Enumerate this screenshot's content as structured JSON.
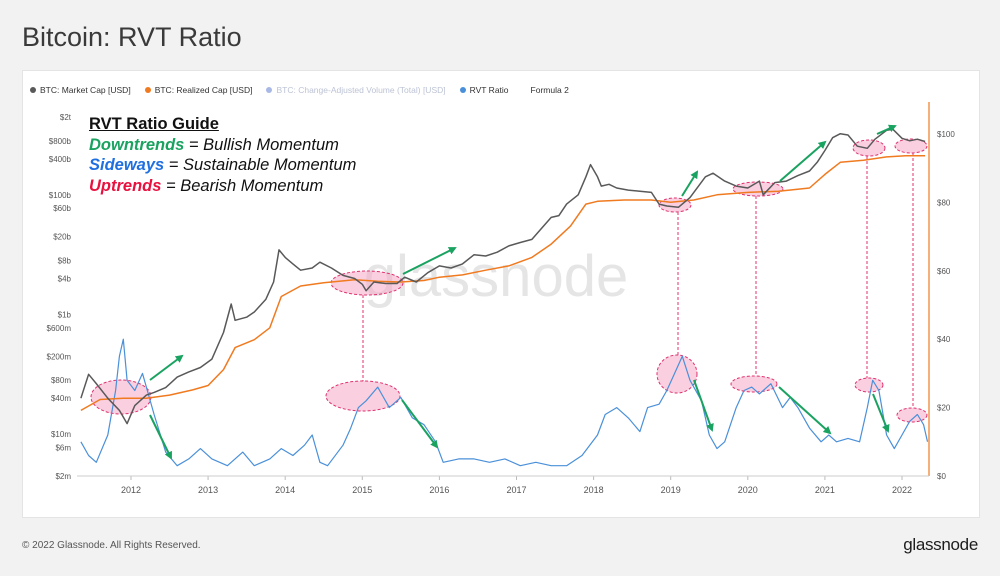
{
  "page": {
    "title": "Bitcoin: RVT Ratio",
    "copyright": "© 2022 Glassnode. All Rights Reserved.",
    "brand": "glassnode",
    "watermark": "glassnode"
  },
  "legend": [
    {
      "label": "BTC: Market Cap [USD]",
      "color": "#595959",
      "muted": false
    },
    {
      "label": "BTC: Realized Cap [USD]",
      "color": "#f07a20",
      "muted": false
    },
    {
      "label": "BTC: Change-Adjusted Volume (Total) [USD]",
      "color": "#7a9be0",
      "muted": true
    },
    {
      "label": "RVT Ratio",
      "color": "#4a90d9",
      "muted": false
    },
    {
      "label": "Formula 2",
      "color": "",
      "muted": false
    }
  ],
  "guide": {
    "title": "RVT Ratio Guide",
    "rows": [
      {
        "key": "Downtrends",
        "rest": " = Bullish Momentum",
        "color": "#1aa260"
      },
      {
        "key": "Sideways",
        "rest": " = Sustainable Momentum",
        "color": "#1f6fe0"
      },
      {
        "key": "Uptrends",
        "rest": " = Bearish Momentum",
        "color": "#e8113f"
      }
    ]
  },
  "chart_data": {
    "type": "line",
    "xlim": [
      2011.3,
      2022.35
    ],
    "x_ticks": [
      "2012",
      "2013",
      "2014",
      "2015",
      "2016",
      "2017",
      "2018",
      "2019",
      "2020",
      "2021",
      "2022"
    ],
    "y_left": {
      "scale": "log",
      "range": [
        2000000,
        2000000000000
      ],
      "ticks": [
        {
          "label": "$2t",
          "value": 2000000000000
        },
        {
          "label": "$800b",
          "value": 800000000000
        },
        {
          "label": "$400b",
          "value": 400000000000
        },
        {
          "label": "$100b",
          "value": 100000000000
        },
        {
          "label": "$60b",
          "value": 60000000000
        },
        {
          "label": "$20b",
          "value": 20000000000
        },
        {
          "label": "$8b",
          "value": 8000000000
        },
        {
          "label": "$4b",
          "value": 4000000000
        },
        {
          "label": "$1b",
          "value": 1000000000
        },
        {
          "label": "$600m",
          "value": 600000000
        },
        {
          "label": "$200m",
          "value": 200000000
        },
        {
          "label": "$80m",
          "value": 80000000
        },
        {
          "label": "$40m",
          "value": 40000000
        },
        {
          "label": "$10m",
          "value": 10000000
        },
        {
          "label": "$6m",
          "value": 6000000
        },
        {
          "label": "$2m",
          "value": 2000000
        }
      ]
    },
    "y_right": {
      "scale": "linear",
      "range": [
        0,
        105
      ],
      "ticks": [
        {
          "label": "$100",
          "value": 100
        },
        {
          "label": "$80",
          "value": 80
        },
        {
          "label": "$60",
          "value": 60
        },
        {
          "label": "$40",
          "value": 40
        },
        {
          "label": "$20",
          "value": 20
        },
        {
          "label": "$0",
          "value": 0
        }
      ]
    },
    "series": [
      {
        "name": "BTC: Market Cap [USD]",
        "axis": "left",
        "color": "#595959",
        "points": [
          [
            2011.35,
            40000000
          ],
          [
            2011.45,
            100000000
          ],
          [
            2011.55,
            70000000
          ],
          [
            2011.7,
            40000000
          ],
          [
            2011.85,
            25000000
          ],
          [
            2011.95,
            15000000
          ],
          [
            2012.05,
            30000000
          ],
          [
            2012.2,
            45000000
          ],
          [
            2012.3,
            50000000
          ],
          [
            2012.45,
            60000000
          ],
          [
            2012.6,
            90000000
          ],
          [
            2012.75,
            110000000
          ],
          [
            2012.9,
            130000000
          ],
          [
            2013.05,
            180000000
          ],
          [
            2013.2,
            500000000
          ],
          [
            2013.3,
            1500000000
          ],
          [
            2013.35,
            800000000
          ],
          [
            2013.5,
            900000000
          ],
          [
            2013.6,
            1100000000
          ],
          [
            2013.75,
            1800000000
          ],
          [
            2013.85,
            3500000000
          ],
          [
            2013.92,
            12000000000
          ],
          [
            2014.0,
            9000000000
          ],
          [
            2014.1,
            7000000000
          ],
          [
            2014.2,
            5500000000
          ],
          [
            2014.35,
            6000000000
          ],
          [
            2014.45,
            7500000000
          ],
          [
            2014.6,
            6000000000
          ],
          [
            2014.75,
            4500000000
          ],
          [
            2014.9,
            4000000000
          ],
          [
            2015.0,
            3200000000
          ],
          [
            2015.05,
            2500000000
          ],
          [
            2015.15,
            3500000000
          ],
          [
            2015.3,
            3300000000
          ],
          [
            2015.45,
            3300000000
          ],
          [
            2015.55,
            4200000000
          ],
          [
            2015.7,
            3500000000
          ],
          [
            2015.85,
            5000000000
          ],
          [
            2016.0,
            6500000000
          ],
          [
            2016.15,
            6000000000
          ],
          [
            2016.3,
            7000000000
          ],
          [
            2016.45,
            10000000000
          ],
          [
            2016.6,
            9500000000
          ],
          [
            2016.75,
            11000000000
          ],
          [
            2016.9,
            14000000000
          ],
          [
            2017.05,
            16000000000
          ],
          [
            2017.2,
            18000000000
          ],
          [
            2017.35,
            30000000000
          ],
          [
            2017.45,
            42000000000
          ],
          [
            2017.55,
            45000000000
          ],
          [
            2017.65,
            70000000000
          ],
          [
            2017.8,
            100000000000
          ],
          [
            2017.9,
            200000000000
          ],
          [
            2017.96,
            320000000000
          ],
          [
            2018.05,
            200000000000
          ],
          [
            2018.1,
            140000000000
          ],
          [
            2018.2,
            150000000000
          ],
          [
            2018.3,
            130000000000
          ],
          [
            2018.45,
            120000000000
          ],
          [
            2018.6,
            115000000000
          ],
          [
            2018.75,
            110000000000
          ],
          [
            2018.85,
            70000000000
          ],
          [
            2018.95,
            65000000000
          ],
          [
            2019.1,
            62000000000
          ],
          [
            2019.25,
            90000000000
          ],
          [
            2019.45,
            200000000000
          ],
          [
            2019.55,
            230000000000
          ],
          [
            2019.7,
            170000000000
          ],
          [
            2019.85,
            140000000000
          ],
          [
            2020.0,
            130000000000
          ],
          [
            2020.15,
            170000000000
          ],
          [
            2020.2,
            100000000000
          ],
          [
            2020.35,
            160000000000
          ],
          [
            2020.5,
            170000000000
          ],
          [
            2020.65,
            210000000000
          ],
          [
            2020.8,
            250000000000
          ],
          [
            2020.9,
            350000000000
          ],
          [
            2021.0,
            550000000000
          ],
          [
            2021.1,
            900000000000
          ],
          [
            2021.2,
            1050000000000
          ],
          [
            2021.3,
            1000000000000
          ],
          [
            2021.42,
            650000000000
          ],
          [
            2021.55,
            600000000000
          ],
          [
            2021.65,
            850000000000
          ],
          [
            2021.8,
            1200000000000
          ],
          [
            2021.88,
            1250000000000
          ],
          [
            2022.0,
            880000000000
          ],
          [
            2022.1,
            800000000000
          ],
          [
            2022.2,
            850000000000
          ],
          [
            2022.3,
            780000000000
          ]
        ]
      },
      {
        "name": "BTC: Realized Cap [USD]",
        "axis": "left",
        "color": "#f07a20",
        "points": [
          [
            2011.35,
            25000000
          ],
          [
            2011.6,
            38000000
          ],
          [
            2011.9,
            40000000
          ],
          [
            2012.2,
            40000000
          ],
          [
            2012.5,
            45000000
          ],
          [
            2012.8,
            55000000
          ],
          [
            2013.0,
            65000000
          ],
          [
            2013.2,
            120000000
          ],
          [
            2013.35,
            280000000
          ],
          [
            2013.6,
            380000000
          ],
          [
            2013.8,
            600000000
          ],
          [
            2013.95,
            2000000000
          ],
          [
            2014.2,
            3000000000
          ],
          [
            2014.5,
            3400000000
          ],
          [
            2014.9,
            3800000000
          ],
          [
            2015.2,
            3600000000
          ],
          [
            2015.5,
            3500000000
          ],
          [
            2015.8,
            3700000000
          ],
          [
            2016.0,
            4200000000
          ],
          [
            2016.3,
            4600000000
          ],
          [
            2016.6,
            5500000000
          ],
          [
            2016.9,
            6500000000
          ],
          [
            2017.2,
            9000000000
          ],
          [
            2017.45,
            15000000000
          ],
          [
            2017.7,
            30000000000
          ],
          [
            2017.9,
            70000000000
          ],
          [
            2018.05,
            78000000000
          ],
          [
            2018.4,
            82000000000
          ],
          [
            2018.75,
            82000000000
          ],
          [
            2019.0,
            75000000000
          ],
          [
            2019.3,
            82000000000
          ],
          [
            2019.6,
            100000000000
          ],
          [
            2020.0,
            110000000000
          ],
          [
            2020.4,
            115000000000
          ],
          [
            2020.8,
            130000000000
          ],
          [
            2021.0,
            220000000000
          ],
          [
            2021.2,
            350000000000
          ],
          [
            2021.5,
            380000000000
          ],
          [
            2021.8,
            430000000000
          ],
          [
            2022.05,
            450000000000
          ],
          [
            2022.3,
            450000000000
          ]
        ]
      },
      {
        "name": "RVT Ratio",
        "axis": "right",
        "color": "#4a90d9",
        "points": [
          [
            2011.35,
            10
          ],
          [
            2011.45,
            6
          ],
          [
            2011.55,
            4
          ],
          [
            2011.7,
            12
          ],
          [
            2011.8,
            25
          ],
          [
            2011.85,
            35
          ],
          [
            2011.9,
            40
          ],
          [
            2011.95,
            28
          ],
          [
            2012.05,
            25
          ],
          [
            2012.15,
            30
          ],
          [
            2012.3,
            18
          ],
          [
            2012.45,
            7
          ],
          [
            2012.6,
            3
          ],
          [
            2012.75,
            5
          ],
          [
            2012.9,
            8
          ],
          [
            2013.05,
            5
          ],
          [
            2013.25,
            3
          ],
          [
            2013.45,
            7
          ],
          [
            2013.6,
            3
          ],
          [
            2013.8,
            5
          ],
          [
            2013.95,
            8
          ],
          [
            2014.1,
            6
          ],
          [
            2014.25,
            9
          ],
          [
            2014.35,
            12
          ],
          [
            2014.45,
            4
          ],
          [
            2014.55,
            3
          ],
          [
            2014.75,
            9
          ],
          [
            2014.85,
            14
          ],
          [
            2014.95,
            20
          ],
          [
            2015.05,
            22
          ],
          [
            2015.2,
            26
          ],
          [
            2015.35,
            20
          ],
          [
            2015.5,
            23
          ],
          [
            2015.65,
            17
          ],
          [
            2015.8,
            15
          ],
          [
            2015.95,
            10
          ],
          [
            2016.05,
            4
          ],
          [
            2016.25,
            5
          ],
          [
            2016.45,
            5
          ],
          [
            2016.65,
            4
          ],
          [
            2016.85,
            5
          ],
          [
            2017.05,
            3
          ],
          [
            2017.25,
            4
          ],
          [
            2017.45,
            3
          ],
          [
            2017.65,
            3
          ],
          [
            2017.85,
            6
          ],
          [
            2018.05,
            12
          ],
          [
            2018.15,
            18
          ],
          [
            2018.3,
            20
          ],
          [
            2018.45,
            17
          ],
          [
            2018.6,
            13
          ],
          [
            2018.7,
            20
          ],
          [
            2018.85,
            21
          ],
          [
            2018.95,
            25
          ],
          [
            2019.05,
            30
          ],
          [
            2019.15,
            35
          ],
          [
            2019.25,
            28
          ],
          [
            2019.4,
            22
          ],
          [
            2019.5,
            12
          ],
          [
            2019.6,
            8
          ],
          [
            2019.7,
            10
          ],
          [
            2019.85,
            20
          ],
          [
            2019.95,
            25
          ],
          [
            2020.05,
            26
          ],
          [
            2020.15,
            24
          ],
          [
            2020.3,
            27
          ],
          [
            2020.45,
            20
          ],
          [
            2020.55,
            23
          ],
          [
            2020.65,
            20
          ],
          [
            2020.8,
            14
          ],
          [
            2020.95,
            10
          ],
          [
            2021.05,
            12
          ],
          [
            2021.15,
            10
          ],
          [
            2021.3,
            11
          ],
          [
            2021.45,
            10
          ],
          [
            2021.55,
            20
          ],
          [
            2021.62,
            28
          ],
          [
            2021.7,
            25
          ],
          [
            2021.8,
            12
          ],
          [
            2021.9,
            8
          ],
          [
            2022.0,
            12
          ],
          [
            2022.1,
            16
          ],
          [
            2022.2,
            18
          ],
          [
            2022.28,
            15
          ],
          [
            2022.33,
            10
          ]
        ]
      }
    ]
  }
}
